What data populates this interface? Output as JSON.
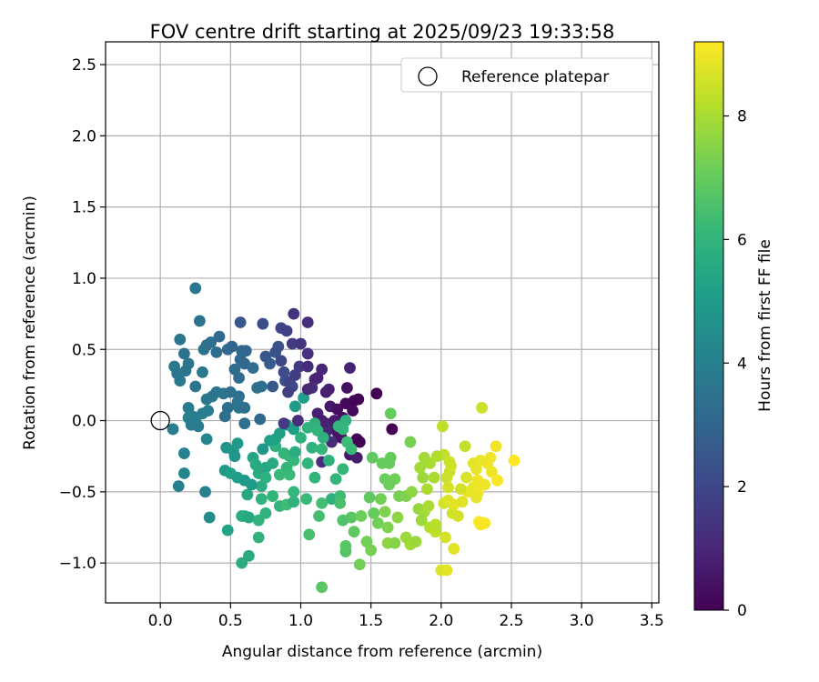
{
  "chart_data": {
    "type": "scatter",
    "title": "FOV centre drift starting at 2025/09/23 19:33:58",
    "xlabel": "Angular distance from reference (arcmin)",
    "ylabel": "Rotation from reference (arcmin)",
    "xlim": [
      -0.39,
      3.55
    ],
    "ylim": [
      -1.28,
      2.66
    ],
    "xticks": [
      0.0,
      0.5,
      1.0,
      1.5,
      2.0,
      2.5,
      3.0,
      3.5
    ],
    "xtick_labels": [
      "0.0",
      "0.5",
      "1.0",
      "1.5",
      "2.0",
      "2.5",
      "3.0",
      "3.5"
    ],
    "yticks": [
      -1.0,
      -0.5,
      0.0,
      0.5,
      1.0,
      1.5,
      2.0,
      2.5
    ],
    "ytick_labels": [
      "−1.0",
      "−0.5",
      "0.0",
      "0.5",
      "1.0",
      "1.5",
      "2.0",
      "2.5"
    ],
    "grid": true,
    "legend": {
      "position": "top-right",
      "label": "Reference platepar"
    },
    "reference_point": [
      0.0,
      0.0
    ],
    "colorbar": {
      "label": "Hours from first FF file",
      "min": 0,
      "max": 9.2,
      "ticks": [
        0,
        2,
        4,
        6,
        8
      ],
      "tick_labels": [
        "0",
        "2",
        "4",
        "6",
        "8"
      ],
      "colormap": "viridis",
      "colormap_stops": [
        "#440154",
        "#482878",
        "#3e4989",
        "#31688e",
        "#26828e",
        "#1f9e89",
        "#35b779",
        "#6ece58",
        "#b5de2b",
        "#fde725"
      ]
    },
    "points": [
      [
        0.25,
        0.93,
        3.6
      ],
      [
        0.28,
        0.7,
        3.5
      ],
      [
        0.14,
        0.57,
        3.6
      ],
      [
        0.17,
        0.47,
        3.5
      ],
      [
        0.1,
        0.38,
        3.7
      ],
      [
        0.12,
        0.33,
        3.6
      ],
      [
        0.14,
        0.28,
        3.7
      ],
      [
        0.18,
        0.35,
        3.6
      ],
      [
        0.2,
        0.4,
        3.5
      ],
      [
        0.25,
        0.24,
        3.6
      ],
      [
        0.3,
        0.34,
        3.7
      ],
      [
        0.33,
        0.53,
        3.4
      ],
      [
        0.31,
        0.5,
        3.5
      ],
      [
        0.36,
        0.55,
        3.4
      ],
      [
        0.4,
        0.48,
        3.3
      ],
      [
        0.42,
        0.59,
        3.2
      ],
      [
        0.48,
        0.5,
        3.1
      ],
      [
        0.51,
        0.52,
        3.0
      ],
      [
        0.58,
        0.49,
        3.1
      ],
      [
        0.61,
        0.49,
        3.0
      ],
      [
        0.57,
        0.43,
        3.1
      ],
      [
        0.6,
        0.4,
        3.1
      ],
      [
        0.53,
        0.36,
        3.2
      ],
      [
        0.56,
        0.3,
        3.2
      ],
      [
        0.57,
        0.69,
        2.5
      ],
      [
        0.73,
        0.68,
        2.2
      ],
      [
        0.86,
        0.65,
        1.9
      ],
      [
        0.9,
        0.63,
        1.8
      ],
      [
        0.95,
        0.75,
        1.4
      ],
      [
        1.05,
        0.69,
        1.2
      ],
      [
        0.33,
        0.15,
        3.7
      ],
      [
        0.37,
        0.17,
        3.6
      ],
      [
        0.4,
        0.2,
        3.6
      ],
      [
        0.45,
        0.19,
        3.5
      ],
      [
        0.5,
        0.2,
        3.4
      ],
      [
        0.56,
        0.17,
        3.3
      ],
      [
        0.55,
        0.13,
        3.6
      ],
      [
        0.56,
        0.09,
        3.5
      ],
      [
        0.48,
        0.09,
        3.4
      ],
      [
        0.6,
        0.09,
        3.3
      ],
      [
        0.2,
        0.09,
        3.8
      ],
      [
        0.23,
        0.03,
        3.9
      ],
      [
        0.25,
        0.01,
        3.8
      ],
      [
        0.2,
        0.02,
        4.0
      ],
      [
        0.22,
        -0.03,
        3.8
      ],
      [
        0.27,
        -0.04,
        3.9
      ],
      [
        0.34,
        0.07,
        3.8
      ],
      [
        0.3,
        0.05,
        3.9
      ],
      [
        0.46,
        0.03,
        3.4
      ],
      [
        0.6,
        -0.02,
        3.3
      ],
      [
        0.71,
        0.01,
        3.1
      ],
      [
        0.09,
        -0.06,
        3.9
      ],
      [
        0.17,
        -0.23,
        4.1
      ],
      [
        0.17,
        -0.37,
        4.2
      ],
      [
        0.13,
        -0.46,
        4.0
      ],
      [
        0.32,
        -0.5,
        4.1
      ],
      [
        0.33,
        -0.13,
        4.2
      ],
      [
        0.35,
        -0.68,
        4.5
      ],
      [
        0.47,
        -0.19,
        4.8
      ],
      [
        0.52,
        -0.21,
        4.9
      ],
      [
        0.55,
        -0.16,
        4.9
      ],
      [
        0.53,
        -0.25,
        4.8
      ],
      [
        0.46,
        -0.35,
        5.0
      ],
      [
        0.5,
        -0.37,
        5.2
      ],
      [
        0.55,
        -0.4,
        5.1
      ],
      [
        0.6,
        -0.42,
        5.0
      ],
      [
        0.48,
        -0.77,
        5.3
      ],
      [
        0.58,
        -0.67,
        5.6
      ],
      [
        0.6,
        -0.67,
        5.6
      ],
      [
        0.63,
        -0.68,
        5.5
      ],
      [
        0.58,
        -1.0,
        5.7
      ],
      [
        0.63,
        -0.95,
        5.6
      ],
      [
        0.7,
        -0.7,
        5.9
      ],
      [
        0.7,
        -0.82,
        5.9
      ],
      [
        0.75,
        -0.65,
        5.9
      ],
      [
        0.62,
        -0.52,
        5.5
      ],
      [
        0.66,
        -0.26,
        5.4
      ],
      [
        0.68,
        -0.31,
        5.6
      ],
      [
        0.7,
        -0.37,
        5.6
      ],
      [
        0.72,
        -0.46,
        5.7
      ],
      [
        0.75,
        -0.33,
        5.5
      ],
      [
        0.75,
        -0.4,
        5.8
      ],
      [
        0.72,
        -0.55,
        5.9
      ],
      [
        0.8,
        -0.3,
        5.6
      ],
      [
        0.82,
        -0.18,
        5.8
      ],
      [
        0.8,
        -0.53,
        6.0
      ],
      [
        0.85,
        -0.6,
        6.0
      ],
      [
        0.9,
        -0.33,
        6.0
      ],
      [
        0.92,
        -0.38,
        6.2
      ],
      [
        0.9,
        -0.59,
        6.3
      ],
      [
        0.95,
        -0.5,
        6.1
      ],
      [
        0.95,
        -0.57,
        5.9
      ],
      [
        0.88,
        -0.23,
        6.0
      ],
      [
        0.92,
        -0.25,
        6.1
      ],
      [
        0.95,
        -0.28,
        6.1
      ],
      [
        0.85,
        -0.38,
        6.2
      ],
      [
        0.73,
        -0.2,
        4.8
      ],
      [
        0.78,
        -0.14,
        5.2
      ],
      [
        0.82,
        -0.13,
        5.3
      ],
      [
        0.85,
        -0.09,
        5.2
      ],
      [
        0.9,
        -0.03,
        5.2
      ],
      [
        0.95,
        -0.06,
        5.1
      ],
      [
        0.96,
        0.1,
        5.0
      ],
      [
        1.02,
        0.16,
        5.1
      ],
      [
        0.66,
        0.37,
        3.3
      ],
      [
        0.69,
        0.23,
        3.5
      ],
      [
        0.72,
        0.24,
        3.4
      ],
      [
        0.75,
        0.45,
        2.5
      ],
      [
        0.78,
        0.4,
        2.7
      ],
      [
        0.82,
        0.48,
        2.4
      ],
      [
        0.84,
        0.52,
        2.3
      ],
      [
        0.8,
        0.24,
        2.6
      ],
      [
        0.86,
        0.42,
        2.0
      ],
      [
        0.88,
        0.34,
        2.1
      ],
      [
        0.89,
        0.28,
        2.2
      ],
      [
        0.92,
        0.27,
        1.9
      ],
      [
        0.94,
        0.24,
        2.0
      ],
      [
        0.91,
        0.2,
        1.8
      ],
      [
        0.96,
        0.32,
        1.7
      ],
      [
        0.99,
        0.38,
        1.6
      ],
      [
        0.94,
        0.54,
        1.6
      ],
      [
        1.0,
        0.54,
        1.4
      ],
      [
        1.05,
        0.47,
        1.3
      ],
      [
        1.05,
        0.38,
        1.2
      ],
      [
        1.05,
        0.22,
        1.0
      ],
      [
        1.1,
        0.29,
        1.0
      ],
      [
        1.08,
        0.23,
        1.1
      ],
      [
        1.12,
        0.3,
        0.9
      ],
      [
        1.15,
        0.36,
        1.0
      ],
      [
        1.18,
        0.2,
        0.7
      ],
      [
        1.2,
        0.22,
        0.8
      ],
      [
        1.21,
        0.1,
        0.6
      ],
      [
        1.26,
        0.08,
        0.4
      ],
      [
        1.3,
        0.02,
        0.3
      ],
      [
        1.32,
        0.12,
        0.2
      ],
      [
        1.33,
        0.23,
        0.4
      ],
      [
        1.35,
        0.37,
        0.9
      ],
      [
        1.38,
        0.14,
        0.1
      ],
      [
        1.41,
        0.15,
        0.0
      ],
      [
        1.37,
        0.07,
        0.2
      ],
      [
        1.4,
        -0.13,
        0.1
      ],
      [
        1.42,
        -0.15,
        0.0
      ],
      [
        1.54,
        0.19,
        0.0
      ],
      [
        1.65,
        -0.06,
        0.0
      ],
      [
        0.88,
        -0.02,
        1.6
      ],
      [
        0.98,
        0.0,
        1.2
      ],
      [
        1.12,
        0.05,
        0.9
      ],
      [
        1.15,
        0.0,
        0.7
      ],
      [
        1.18,
        -0.02,
        0.8
      ],
      [
        1.2,
        -0.04,
        0.9
      ],
      [
        1.13,
        -0.06,
        0.8
      ],
      [
        1.18,
        -0.08,
        1.0
      ],
      [
        1.22,
        -0.15,
        1.1
      ],
      [
        1.24,
        0.0,
        0.7
      ],
      [
        1.26,
        -0.08,
        0.6
      ],
      [
        1.29,
        -0.12,
        0.5
      ],
      [
        1.35,
        -0.24,
        0.6
      ],
      [
        1.4,
        -0.26,
        0.7
      ],
      [
        1.15,
        -0.29,
        1.2
      ],
      [
        1.1,
        -0.02,
        5.8
      ],
      [
        1.12,
        -0.07,
        6.0
      ],
      [
        1.16,
        -0.12,
        5.9
      ],
      [
        1.2,
        -0.28,
        5.8
      ],
      [
        1.27,
        -0.04,
        6.0
      ],
      [
        1.32,
        0.0,
        5.9
      ],
      [
        1.3,
        -0.06,
        6.1
      ],
      [
        1.33,
        -0.15,
        6.3
      ],
      [
        1.36,
        -0.2,
        6.2
      ],
      [
        1.3,
        -0.34,
        6.1
      ],
      [
        1.25,
        -0.41,
        6.0
      ],
      [
        1.22,
        -0.55,
        5.8
      ],
      [
        1.28,
        -0.53,
        6.3
      ],
      [
        1.28,
        -0.58,
        6.5
      ],
      [
        1.3,
        -0.7,
        6.6
      ],
      [
        1.36,
        -0.68,
        6.8
      ],
      [
        1.32,
        -0.92,
        6.7
      ],
      [
        1.32,
        -0.88,
        6.8
      ],
      [
        1.38,
        -0.78,
        6.9
      ],
      [
        1.43,
        -0.67,
        7.1
      ],
      [
        1.42,
        -1.01,
        7.2
      ],
      [
        1.47,
        -0.85,
        7.2
      ],
      [
        1.5,
        -0.91,
        7.3
      ],
      [
        1.49,
        -0.54,
        6.9
      ],
      [
        1.52,
        -0.65,
        7.0
      ],
      [
        1.57,
        -0.55,
        7.2
      ],
      [
        1.6,
        -0.64,
        7.4
      ],
      [
        1.55,
        -0.72,
        7.2
      ],
      [
        1.51,
        -0.26,
        6.9
      ],
      [
        1.58,
        -0.3,
        7.0
      ],
      [
        1.63,
        -0.3,
        7.0
      ],
      [
        1.6,
        -0.41,
        7.1
      ],
      [
        1.67,
        -0.41,
        7.2
      ],
      [
        1.63,
        -0.45,
        7.1
      ],
      [
        1.64,
        -0.26,
        7.0
      ],
      [
        1.7,
        -0.53,
        7.3
      ],
      [
        1.62,
        -0.75,
        7.4
      ],
      [
        1.62,
        -0.86,
        7.6
      ],
      [
        1.67,
        -0.86,
        7.5
      ],
      [
        1.75,
        -0.82,
        7.8
      ],
      [
        1.78,
        -0.87,
        7.9
      ],
      [
        1.82,
        -0.85,
        7.8
      ],
      [
        1.75,
        -0.53,
        7.4
      ],
      [
        1.79,
        -0.5,
        7.6
      ],
      [
        1.84,
        -0.62,
        7.7
      ],
      [
        1.88,
        -0.64,
        7.9
      ],
      [
        1.91,
        -0.6,
        8.0
      ],
      [
        1.86,
        -0.7,
        7.8
      ],
      [
        1.92,
        -0.75,
        8.1
      ],
      [
        1.96,
        -0.73,
        8.2
      ],
      [
        1.96,
        -0.78,
        8.3
      ],
      [
        2.0,
        -1.05,
        8.7
      ],
      [
        2.04,
        -1.05,
        8.8
      ],
      [
        2.03,
        -0.82,
        8.6
      ],
      [
        2.09,
        -0.9,
        8.8
      ],
      [
        2.08,
        -0.65,
        8.5
      ],
      [
        2.12,
        -0.67,
        8.6
      ],
      [
        2.02,
        -0.58,
        8.6
      ],
      [
        2.05,
        -0.56,
        8.7
      ],
      [
        2.09,
        -0.59,
        8.8
      ],
      [
        2.15,
        -0.57,
        8.8
      ],
      [
        2.19,
        -0.5,
        8.9
      ],
      [
        2.23,
        -0.47,
        8.9
      ],
      [
        2.26,
        -0.51,
        9.0
      ],
      [
        2.25,
        -0.54,
        8.9
      ],
      [
        2.27,
        -0.71,
        9.1
      ],
      [
        2.28,
        -0.73,
        9.1
      ],
      [
        2.31,
        -0.72,
        9.1
      ],
      [
        2.26,
        -0.42,
        9.0
      ],
      [
        2.31,
        -0.45,
        9.0
      ],
      [
        2.36,
        -0.36,
        9.0
      ],
      [
        2.4,
        -0.42,
        9.1
      ],
      [
        2.33,
        -0.3,
        9.0
      ],
      [
        2.35,
        -0.26,
        9.0
      ],
      [
        2.39,
        -0.18,
        9.0
      ],
      [
        2.52,
        -0.28,
        9.2
      ],
      [
        2.23,
        -0.3,
        8.8
      ],
      [
        2.25,
        -0.34,
        8.9
      ],
      [
        2.28,
        -0.28,
        8.9
      ],
      [
        2.18,
        -0.4,
        8.7
      ],
      [
        2.14,
        -0.48,
        8.6
      ],
      [
        2.06,
        -0.36,
        8.5
      ],
      [
        2.04,
        -0.4,
        8.5
      ],
      [
        2.07,
        -0.32,
        8.6
      ],
      [
        2.05,
        -0.47,
        8.6
      ],
      [
        2.02,
        -0.24,
        8.4
      ],
      [
        2.06,
        -0.29,
        8.5
      ],
      [
        2.01,
        -0.04,
        8.3
      ],
      [
        2.29,
        0.09,
        8.5
      ],
      [
        2.17,
        -0.18,
        8.4
      ],
      [
        1.92,
        -0.3,
        8.0
      ],
      [
        1.88,
        -0.26,
        7.9
      ],
      [
        1.85,
        -0.33,
        7.9
      ],
      [
        1.87,
        -0.4,
        7.8
      ],
      [
        1.9,
        -0.48,
        8.0
      ],
      [
        1.97,
        -0.25,
        8.1
      ],
      [
        1.95,
        -0.4,
        8.0
      ],
      [
        1.78,
        -0.15,
        7.3
      ],
      [
        1.64,
        0.05,
        7.0
      ],
      [
        1.69,
        -0.68,
        7.6
      ],
      [
        1.15,
        -1.17,
        6.8
      ],
      [
        1.06,
        -0.8,
        6.5
      ],
      [
        1.13,
        -0.67,
        6.4
      ],
      [
        1.04,
        -0.55,
        6.2
      ],
      [
        1.15,
        -0.58,
        6.4
      ],
      [
        1.1,
        -0.4,
        6.0
      ],
      [
        1.05,
        -0.3,
        6.0
      ],
      [
        1.08,
        -0.19,
        5.9
      ],
      [
        1.15,
        -0.2,
        6.1
      ],
      [
        0.96,
        -0.22,
        5.7
      ],
      [
        1.0,
        -0.12,
        5.9
      ],
      [
        1.05,
        -0.05,
        5.9
      ],
      [
        0.65,
        -0.45,
        5.0
      ]
    ]
  }
}
